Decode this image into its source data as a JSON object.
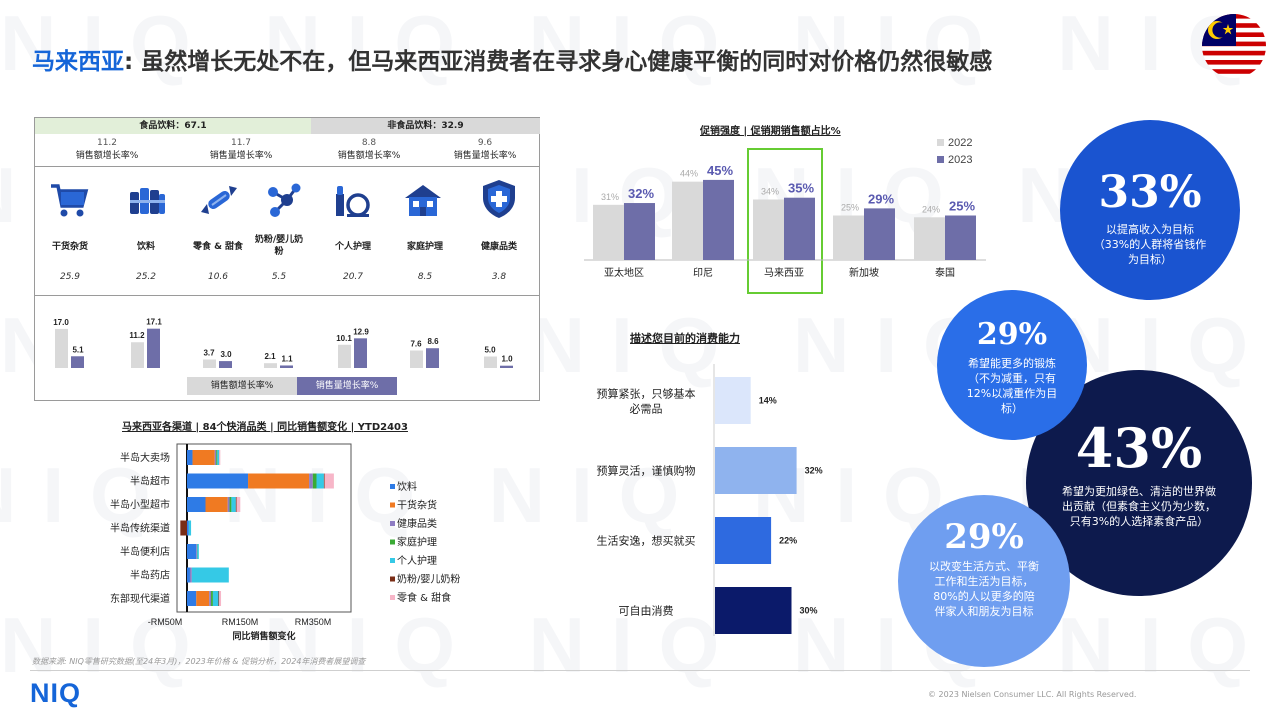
{
  "header": {
    "title_highlight": "马来西亚",
    "title_rest": ": 虽然增长无处不在，但马来西亚消费者在寻求身心健康平衡的同时对价格仍然很敏感"
  },
  "watermark": {
    "text": "NIQ NIQ NIQ NIQ NIQ NIQ"
  },
  "colors": {
    "brand_blue": "#1565d8",
    "navy": "#0d1a4d",
    "bar_light": "#d9d9d9",
    "bar_dark": "#6e6ea8",
    "hilite_green": "#66cc33"
  },
  "category_panel": {
    "food_label": "食品饮料：67.1",
    "nonfood_label": "非食品饮料：32.9",
    "metrics": [
      {
        "value": "11.2",
        "label": "销售额增长率%"
      },
      {
        "value": "11.7",
        "label": "销售量增长率%"
      },
      {
        "value": "8.8",
        "label": "销售额增长率%"
      },
      {
        "value": "9.6",
        "label": "销售量增长率%"
      }
    ],
    "categories": [
      {
        "name": "干货杂货",
        "icon": "shopping-cart-icon",
        "share": "25.9",
        "sales_growth": 17.0,
        "volume_growth": 5.1
      },
      {
        "name": "饮料",
        "icon": "cans-icon",
        "share": "25.2",
        "sales_growth": 11.2,
        "volume_growth": 17.1
      },
      {
        "name": "零食 & 甜食",
        "icon": "candy-icon",
        "share": "10.6",
        "sales_growth": 3.7,
        "volume_growth": 3.0
      },
      {
        "name": "奶粉/婴儿奶粉",
        "icon": "molecule-icon",
        "share": "5.5",
        "sales_growth": 2.1,
        "volume_growth": 1.1
      },
      {
        "name": "个人护理",
        "icon": "cosmetics-icon",
        "share": "20.7",
        "sales_growth": 10.1,
        "volume_growth": 12.9
      },
      {
        "name": "家庭护理",
        "icon": "house-icon",
        "share": "8.5",
        "sales_growth": 7.6,
        "volume_growth": 8.6
      },
      {
        "name": "健康品类",
        "icon": "health-shield-icon",
        "share": "3.8",
        "sales_growth": 5.0,
        "volume_growth": 1.0
      }
    ],
    "legend": {
      "sales": "销售额增长率%",
      "volume": "销售量增长率%"
    }
  },
  "channel_chart": {
    "title": "马来西亚各渠道 | 84个快消品类 | 同比销售额变化 | YTD2403",
    "xlabel": "同比销售额变化",
    "ticks": [
      "-RM50M",
      "RM150M",
      "RM350M"
    ]
  },
  "promo_chart": {
    "title": "促销强度 | 促销期销售额占比%",
    "legend": [
      "2022",
      "2023"
    ]
  },
  "spend_chart": {
    "title": "描述您目前的消费能力"
  },
  "bubbles": [
    {
      "pct": "33%",
      "text": "以提高收入为目标（33%的人群将省钱作为目标）"
    },
    {
      "pct": "29%",
      "text": "希望能更多的锻炼（不为减重，只有12%以减重作为目标）"
    },
    {
      "pct": "43%",
      "text": "希望为更加绿色、清洁的世界做出贡献（但素食主义仍为少数，只有3%的人选择素食产品）"
    },
    {
      "pct": "29%",
      "text": "以改变生活方式、平衡工作和生活为目标，80%的人以更多的陪伴家人和朋友为目标"
    }
  ],
  "footer": {
    "source": "数据来源: NIQ零售研究数据(至24年3月)，2023年价格 & 促销分析，2024年消费者展望调查",
    "logo": "NIQ",
    "copyright": "© 2023 Nielsen Consumer LLC. All Rights Reserved."
  },
  "chart_data": [
    {
      "type": "bar",
      "title": "销售额增长率% / 销售量增长率%",
      "categories": [
        "干货杂货",
        "饮料",
        "零食 & 甜食",
        "奶粉/婴儿奶粉",
        "个人护理",
        "家庭护理",
        "健康品类"
      ],
      "series": [
        {
          "name": "销售额增长率%",
          "values": [
            17.0,
            11.2,
            3.7,
            2.1,
            10.1,
            7.6,
            5.0
          ]
        },
        {
          "name": "销售量增长率%",
          "values": [
            5.1,
            17.1,
            3.0,
            1.1,
            12.9,
            8.6,
            1.0
          ]
        }
      ]
    },
    {
      "type": "bar",
      "title": "马来西亚各渠道 | 84个快消品类 | 同比销售额变化 | YTD2403",
      "orientation": "horizontal",
      "stacked": true,
      "categories": [
        "半岛大卖场",
        "半岛超市",
        "半岛小型超市",
        "半岛传统渠道",
        "半岛便利店",
        "半岛药店",
        "东部现代渠道"
      ],
      "xlim": [
        -50,
        400
      ],
      "xlabel": "同比销售额变化",
      "series": [
        {
          "name": "饮料",
          "color": "#2e7be6",
          "values": [
            15,
            165,
            50,
            5,
            25,
            8,
            25
          ]
        },
        {
          "name": "干货杂货",
          "color": "#f07a22",
          "values": [
            60,
            165,
            60,
            0,
            0,
            0,
            35
          ]
        },
        {
          "name": "健康品类",
          "color": "#8e7cc3",
          "values": [
            4,
            10,
            5,
            0,
            2,
            5,
            5
          ]
        },
        {
          "name": "家庭护理",
          "color": "#3aaa35",
          "values": [
            3,
            10,
            5,
            0,
            1,
            0,
            5
          ]
        },
        {
          "name": "个人护理",
          "color": "#35c9e6",
          "values": [
            5,
            20,
            12,
            6,
            4,
            100,
            15
          ]
        },
        {
          "name": "奶粉/婴儿奶粉",
          "color": "#7a2e17",
          "values": [
            0,
            2,
            2,
            -18,
            0,
            0,
            2
          ]
        },
        {
          "name": "零食 & 甜食",
          "color": "#f7b6c8",
          "values": [
            3,
            25,
            10,
            0,
            0,
            0,
            5
          ]
        }
      ]
    },
    {
      "type": "bar",
      "title": "促销强度 | 促销期销售额占比%",
      "categories": [
        "亚太地区",
        "印尼",
        "马来西亚",
        "新加坡",
        "泰国"
      ],
      "ylim": [
        0,
        50
      ],
      "series": [
        {
          "name": "2022",
          "values": [
            31,
            44,
            34,
            25,
            24
          ]
        },
        {
          "name": "2023",
          "values": [
            32,
            45,
            35,
            29,
            25
          ]
        }
      ]
    },
    {
      "type": "bar",
      "title": "描述您目前的消费能力",
      "orientation": "horizontal",
      "categories": [
        "预算紧张，只够基本必需品",
        "预算灵活，谨慎购物",
        "生活安逸，想买就买",
        "可自由消费"
      ],
      "values": [
        14,
        32,
        22,
        30
      ],
      "unit": "%"
    }
  ]
}
